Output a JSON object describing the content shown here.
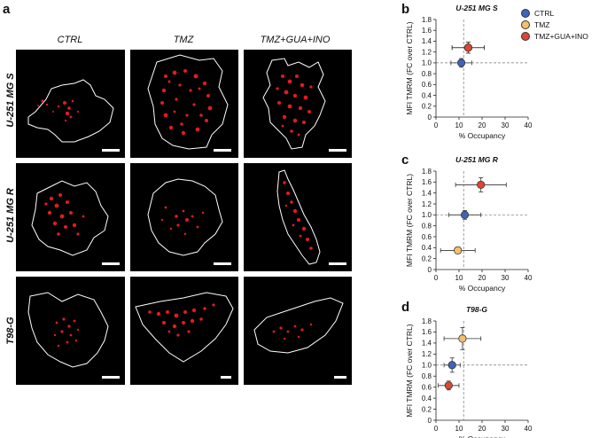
{
  "panels": {
    "a": {
      "letter": "a",
      "columns": [
        "CTRL",
        "TMZ",
        "TMZ+GUA+INO"
      ],
      "rows": [
        "U-251 MG S",
        "U-251 MG R",
        "T98-G"
      ]
    },
    "b": {
      "letter": "b"
    },
    "c": {
      "letter": "c"
    },
    "d": {
      "letter": "d"
    }
  },
  "legend": {
    "items": [
      {
        "label": "CTRL",
        "color": "#3f63b8"
      },
      {
        "label": "TMZ",
        "color": "#f2c16b"
      },
      {
        "label": "TMZ+GUA+INO",
        "color": "#e0452f"
      }
    ]
  },
  "chart_data": [
    {
      "type": "scatter",
      "title": "U-251 MG S",
      "xlabel": "% Occupancy",
      "ylabel": "MFI TMRM (FC over CTRL)",
      "xlim": [
        0,
        40
      ],
      "ylim": [
        0,
        1.8
      ],
      "xticks": [
        "0",
        "10",
        "20",
        "30",
        "40"
      ],
      "yticks": [
        "0",
        "0.2",
        "0.4",
        "0.6",
        "0.8",
        "1.0",
        "1.2",
        "1.4",
        "1.6",
        "1.8"
      ],
      "ref_x": 12,
      "ref_y": 1.0,
      "series": [
        {
          "name": "CTRL",
          "x": 11,
          "y": 1.0,
          "xerr": 4.5,
          "yerr": 0.08
        },
        {
          "name": "TMZ",
          "x": 14,
          "y": 1.28,
          "xerr": 7,
          "yerr": 0.1
        },
        {
          "name": "TMZ+GUA+INO",
          "x": 14,
          "y": 1.28,
          "xerr": 7,
          "yerr": 0.1
        }
      ]
    },
    {
      "type": "scatter",
      "title": "U-251 MG R",
      "xlabel": "% Occupancy",
      "ylabel": "MFI TMRM (FC over CTRL)",
      "xlim": [
        0,
        40
      ],
      "ylim": [
        0,
        1.8
      ],
      "xticks": [
        "0",
        "10",
        "20",
        "30",
        "40"
      ],
      "yticks": [
        "0",
        "0.2",
        "0.4",
        "0.6",
        "0.8",
        "1.0",
        "1.2",
        "1.4",
        "1.6",
        "1.8"
      ],
      "ref_x": 12,
      "ref_y": 1.0,
      "series": [
        {
          "name": "CTRL",
          "x": 12.5,
          "y": 1.0,
          "xerr": 7,
          "yerr": 0.08
        },
        {
          "name": "TMZ",
          "x": 9.5,
          "y": 0.35,
          "xerr": 7.5,
          "yerr": 0.06
        },
        {
          "name": "TMZ+GUA+INO",
          "x": 19.5,
          "y": 1.55,
          "xerr": 11,
          "yerr": 0.13
        }
      ]
    },
    {
      "type": "scatter",
      "title": "T98-G",
      "xlabel": "% Occupancy",
      "ylabel": "MFI TMRM (FC over CTRL)",
      "xlim": [
        0,
        40
      ],
      "ylim": [
        0,
        1.8
      ],
      "xticks": [
        "0",
        "10",
        "20",
        "30",
        "40"
      ],
      "yticks": [
        "0",
        "0.2",
        "0.4",
        "0.6",
        "0.8",
        "1.0",
        "1.2",
        "1.4",
        "1.6",
        "1.8"
      ],
      "ref_x": 12,
      "ref_y": 1.0,
      "series": [
        {
          "name": "CTRL",
          "x": 7,
          "y": 1.0,
          "xerr": 3.5,
          "yerr": 0.13
        },
        {
          "name": "TMZ",
          "x": 11.5,
          "y": 1.48,
          "xerr": 8,
          "yerr": 0.2
        },
        {
          "name": "TMZ+GUA+INO",
          "x": 5.5,
          "y": 0.63,
          "xerr": 4.5,
          "yerr": 0.08
        }
      ]
    }
  ]
}
